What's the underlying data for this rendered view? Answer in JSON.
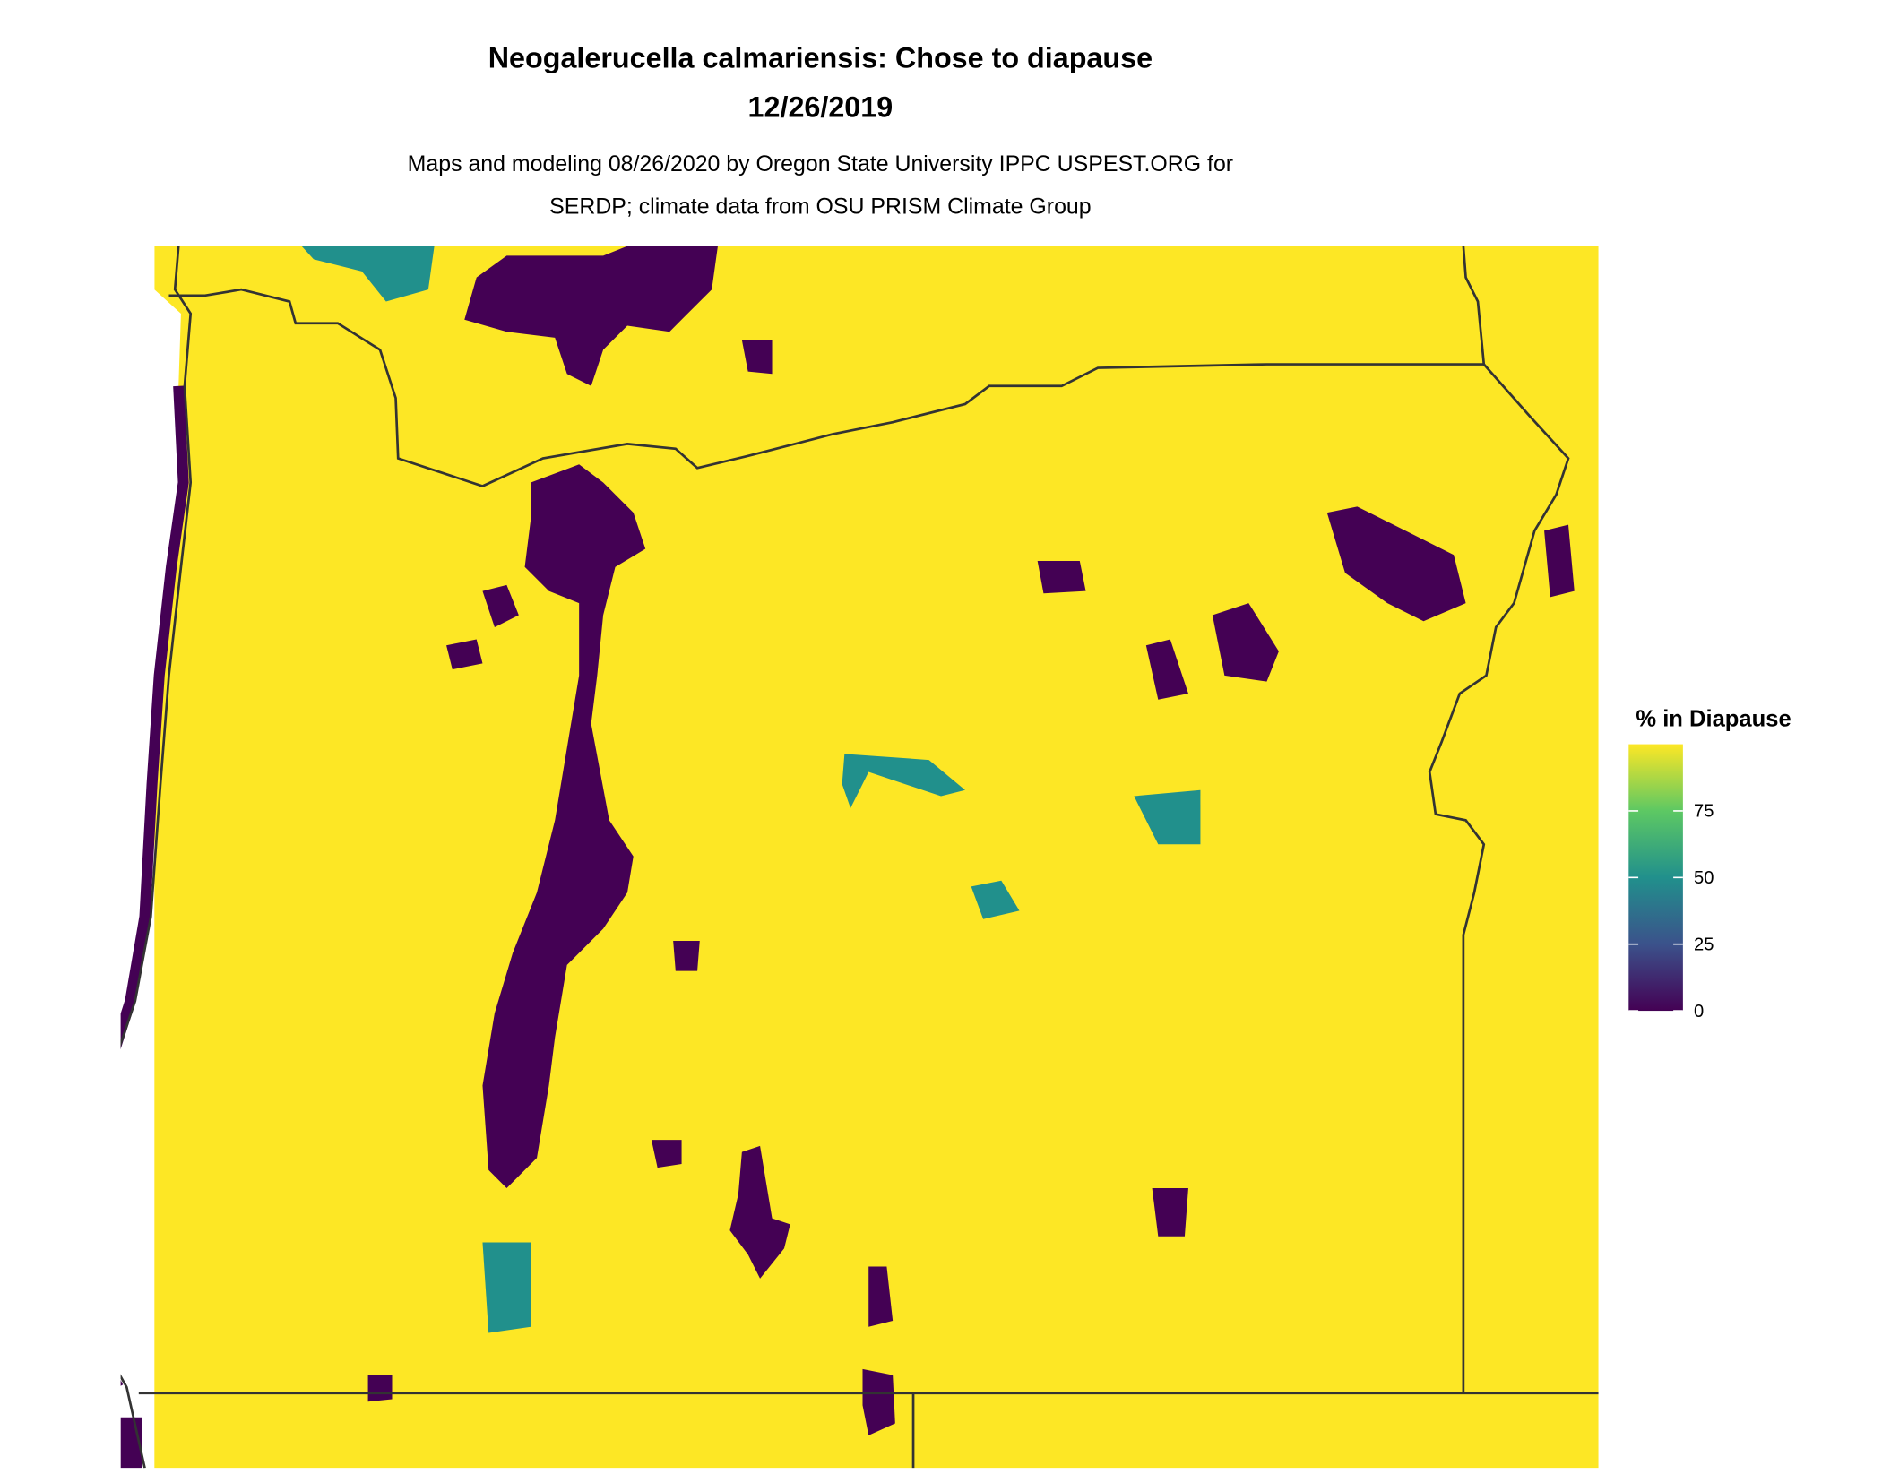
{
  "title": {
    "line1": "Neogalerucella calmariensis: Chose to diapause",
    "line2": "12/26/2019"
  },
  "subtitle": {
    "line1": "Maps and modeling 08/26/2020 by Oregon State University IPPC USPEST.ORG for",
    "line2": "SERDP; climate data from OSU PRISM Climate Group"
  },
  "legend": {
    "title": "% in Diapause",
    "range": [
      0,
      100
    ],
    "ticks": [
      "0",
      "25",
      "50",
      "75"
    ],
    "colormap": "viridis",
    "colors": [
      "#440154",
      "#3B528B",
      "#21908C",
      "#5DC863",
      "#FDE725"
    ]
  },
  "map": {
    "region": "Oregon",
    "background_value_color": "#FDE725",
    "low_value_color": "#440154",
    "mid_value_color": "#21908C",
    "border_color": "#333333"
  }
}
